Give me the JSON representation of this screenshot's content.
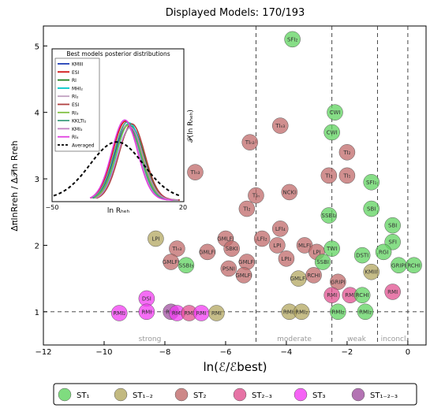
{
  "chart_data": {
    "type": "scatter",
    "title": "Displayed Models: 170/193",
    "xlabel": "ln(ℰ/ℰbest)",
    "ylabel": "ΔπlnRreh / Δ𝒫ln Rreh",
    "xlim": [
      -12,
      0.6
    ],
    "ylim": [
      0.5,
      5.3
    ],
    "xticks": [
      "−12",
      "−10",
      "−8",
      "−6",
      "−4",
      "−2",
      "0"
    ],
    "yticks": [
      "1",
      "2",
      "3",
      "4",
      "5"
    ],
    "grid": false,
    "evidence_thresholds": [
      -5,
      -2.5,
      -1,
      0
    ],
    "reference_line_y": 1,
    "evidence_labels": [
      "strong",
      "moderate",
      "weak",
      "inconcl."
    ],
    "categories": [
      "ST₁",
      "ST₁₋₂",
      "ST₂",
      "ST₂₋₃",
      "ST₃",
      "ST₁₋₂₋₃"
    ],
    "category_colors": [
      "#5fd35f",
      "#b3a760",
      "#c06a6a",
      "#e0508f",
      "#f23cf2",
      "#a050a0"
    ],
    "points": [
      {
        "x": -3.8,
        "y": 5.1,
        "label": "SFI₂",
        "cat": 0
      },
      {
        "x": -2.4,
        "y": 4.0,
        "label": "CWI",
        "cat": 0
      },
      {
        "x": -2.5,
        "y": 3.7,
        "label": "CWI",
        "cat": 0
      },
      {
        "x": -2.0,
        "y": 3.4,
        "label": "TI₂",
        "cat": 2
      },
      {
        "x": -2.0,
        "y": 3.05,
        "label": "TI₁",
        "cat": 2
      },
      {
        "x": -2.6,
        "y": 3.05,
        "label": "TI₁",
        "cat": 2
      },
      {
        "x": -1.2,
        "y": 2.95,
        "label": "SFI₁",
        "cat": 0
      },
      {
        "x": -3.9,
        "y": 2.8,
        "label": "NCKI",
        "cat": 2
      },
      {
        "x": -4.2,
        "y": 3.8,
        "label": "TIₙ₃",
        "cat": 2
      },
      {
        "x": -5.2,
        "y": 3.55,
        "label": "TIₙ₃",
        "cat": 2
      },
      {
        "x": -5.0,
        "y": 2.75,
        "label": "TIₙ",
        "cat": 2
      },
      {
        "x": -5.3,
        "y": 2.55,
        "label": "TI₂",
        "cat": 2
      },
      {
        "x": -7.0,
        "y": 3.1,
        "label": "TIₙ₃",
        "cat": 2
      },
      {
        "x": -1.2,
        "y": 2.55,
        "label": "SBI",
        "cat": 0
      },
      {
        "x": -2.6,
        "y": 2.45,
        "label": "SSBI₂",
        "cat": 0
      },
      {
        "x": -0.5,
        "y": 2.3,
        "label": "SBI",
        "cat": 0
      },
      {
        "x": -0.5,
        "y": 2.05,
        "label": "SFI",
        "cat": 0
      },
      {
        "x": -4.2,
        "y": 2.25,
        "label": "LFI₄",
        "cat": 2
      },
      {
        "x": -8.3,
        "y": 2.1,
        "label": "LPI",
        "cat": 1
      },
      {
        "x": -7.6,
        "y": 1.95,
        "label": "TIₙ₃",
        "cat": 2
      },
      {
        "x": -6.0,
        "y": 2.1,
        "label": "GMLFI",
        "cat": 2
      },
      {
        "x": -5.8,
        "y": 1.95,
        "label": "SBKI",
        "cat": 2
      },
      {
        "x": -5.3,
        "y": 1.75,
        "label": "GMLFI",
        "cat": 2
      },
      {
        "x": -4.8,
        "y": 2.1,
        "label": "LFI₂",
        "cat": 2
      },
      {
        "x": -4.3,
        "y": 2.0,
        "label": "LPI",
        "cat": 2
      },
      {
        "x": -3.4,
        "y": 2.0,
        "label": "MLFI",
        "cat": 2
      },
      {
        "x": -7.8,
        "y": 1.75,
        "label": "GMLFI",
        "cat": 2
      },
      {
        "x": -7.3,
        "y": 1.7,
        "label": "SSBI₃",
        "cat": 0
      },
      {
        "x": -6.6,
        "y": 1.9,
        "label": "GMLFI",
        "cat": 2
      },
      {
        "x": -4.0,
        "y": 1.8,
        "label": "LPI₂",
        "cat": 2
      },
      {
        "x": -5.9,
        "y": 1.65,
        "label": "PSNI",
        "cat": 2
      },
      {
        "x": -5.4,
        "y": 1.55,
        "label": "GMLFI",
        "cat": 2
      },
      {
        "x": -3.0,
        "y": 1.9,
        "label": "LPI",
        "cat": 2
      },
      {
        "x": -2.5,
        "y": 1.95,
        "label": "TWI",
        "cat": 0
      },
      {
        "x": -1.5,
        "y": 1.85,
        "label": "DSTI",
        "cat": 0
      },
      {
        "x": -0.8,
        "y": 1.9,
        "label": "RGI",
        "cat": 0
      },
      {
        "x": -2.8,
        "y": 1.75,
        "label": "SSBI",
        "cat": 0
      },
      {
        "x": -3.6,
        "y": 1.5,
        "label": "GMLFI",
        "cat": 1
      },
      {
        "x": -3.1,
        "y": 1.55,
        "label": "RCHI",
        "cat": 2
      },
      {
        "x": -2.3,
        "y": 1.45,
        "label": "GRIPI",
        "cat": 2
      },
      {
        "x": -2.5,
        "y": 1.25,
        "label": "RMI",
        "cat": 3
      },
      {
        "x": -1.9,
        "y": 1.25,
        "label": "RMI",
        "cat": 3
      },
      {
        "x": -1.5,
        "y": 1.25,
        "label": "RCHI",
        "cat": 0
      },
      {
        "x": -0.5,
        "y": 1.3,
        "label": "RMI",
        "cat": 3
      },
      {
        "x": -0.3,
        "y": 1.7,
        "label": "GRIPI",
        "cat": 0
      },
      {
        "x": 0.2,
        "y": 1.7,
        "label": "RCHI",
        "cat": 0
      },
      {
        "x": -1.2,
        "y": 1.6,
        "label": "KMIII",
        "cat": 1
      },
      {
        "x": -2.3,
        "y": 1.0,
        "label": "RMI₂",
        "cat": 0
      },
      {
        "x": -1.4,
        "y": 1.0,
        "label": "RMI₂",
        "cat": 0
      },
      {
        "x": -3.9,
        "y": 1.0,
        "label": "RMI₂",
        "cat": 1
      },
      {
        "x": -3.5,
        "y": 1.0,
        "label": "RMI₂",
        "cat": 1
      },
      {
        "x": -9.5,
        "y": 0.98,
        "label": "RMI₂",
        "cat": 4
      },
      {
        "x": -8.6,
        "y": 1.2,
        "label": "DSI",
        "cat": 4
      },
      {
        "x": -8.6,
        "y": 1.0,
        "label": "RMI",
        "cat": 4
      },
      {
        "x": -7.8,
        "y": 1.0,
        "label": "RMI",
        "cat": 5
      },
      {
        "x": -7.6,
        "y": 0.98,
        "label": "RMI",
        "cat": 4
      },
      {
        "x": -7.2,
        "y": 0.98,
        "label": "RMI",
        "cat": 3
      },
      {
        "x": -6.8,
        "y": 0.98,
        "label": "RMI",
        "cat": 4
      },
      {
        "x": -6.3,
        "y": 0.98,
        "label": "RMI",
        "cat": 1
      }
    ]
  },
  "inset": {
    "title": "Best models posterior distributions",
    "legend": [
      "KMIII",
      "ESI",
      "RI",
      "MHI₂",
      "RI₂",
      "ESI",
      "RI₃",
      "KKLTI₂",
      "KMI₃",
      "RI₄",
      "Averaged"
    ],
    "legend_colors": [
      "#1f3cb4",
      "#d01010",
      "#208020",
      "#00c8c8",
      "#c0a0c0",
      "#b04040",
      "#80c040",
      "#40a080",
      "#c080c0",
      "#e040e0",
      "#000000"
    ],
    "xticks": [
      "−50",
      "20"
    ],
    "xlabel": "ln Rₕₑₕ",
    "ylabel": "𝒫(ln Rₕₑₕ)"
  },
  "legend": {
    "entries": [
      "ST₁",
      "ST₁₋₂",
      "ST₂",
      "ST₂₋₃",
      "ST₃",
      "ST₁₋₂₋₃"
    ]
  }
}
